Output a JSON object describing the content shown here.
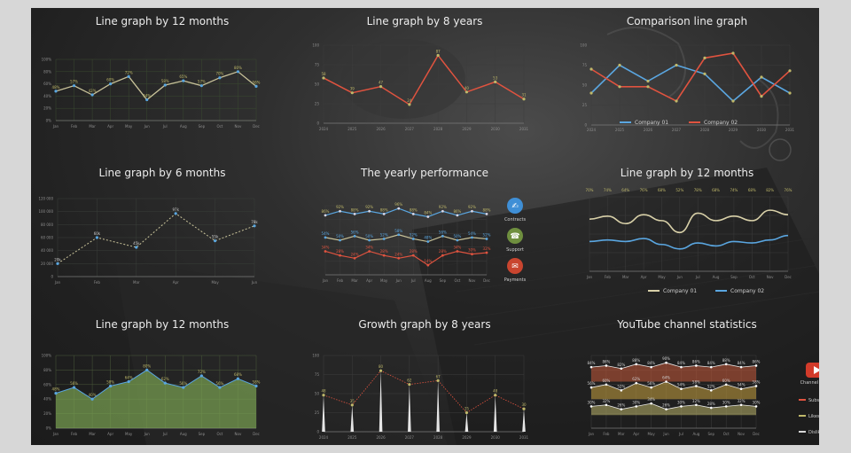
{
  "colors": {
    "yellow": "#bfb86a",
    "blue": "#5aa6e0",
    "red": "#e0533f",
    "green": "#7aa253",
    "cream": "#d8d0a8",
    "grid": "#3a4a30"
  },
  "chart_data": [
    {
      "type": "line",
      "title": "Line graph by 12 months",
      "categories": [
        "Jan",
        "Feb",
        "Mar",
        "Apr",
        "May",
        "Jun",
        "Jul",
        "Aug",
        "Sep",
        "Oct",
        "Nov",
        "Dec"
      ],
      "values": [
        48,
        57,
        42,
        60,
        72,
        34,
        58,
        65,
        57,
        70,
        80,
        56
      ],
      "ylim": [
        0,
        100
      ],
      "yticks": [
        "0%",
        "20%",
        "40%",
        "60%",
        "80%",
        "100%"
      ]
    },
    {
      "type": "line",
      "title": "Line graph by 8 years",
      "categories": [
        "2024",
        "2025",
        "2026",
        "2027",
        "2028",
        "2029",
        "2030",
        "2031"
      ],
      "values": [
        58,
        39,
        47,
        24,
        87,
        40,
        53,
        31
      ],
      "ylim": [
        0,
        100
      ],
      "yticks": [
        "0",
        "25",
        "50",
        "75",
        "100"
      ]
    },
    {
      "type": "line",
      "title": "Comparison line graph",
      "categories": [
        "2024",
        "2025",
        "2026",
        "2027",
        "2028",
        "2029",
        "2030",
        "2031"
      ],
      "series": [
        {
          "name": "Company 01",
          "values": [
            40,
            75,
            55,
            75,
            64,
            30,
            60,
            40
          ]
        },
        {
          "name": "Company 02",
          "values": [
            70,
            48,
            48,
            30,
            84,
            90,
            36,
            68
          ]
        }
      ],
      "ylim": [
        0,
        100
      ],
      "yticks": [
        "0",
        "25",
        "50",
        "75",
        "100"
      ],
      "legend": "bottom"
    },
    {
      "type": "line",
      "title": "Line graph by 6 months",
      "categories": [
        "Jan",
        "Feb",
        "Mar",
        "Apr",
        "May",
        "Jun"
      ],
      "values": [
        20000,
        60000,
        45000,
        97000,
        55000,
        78000
      ],
      "ylim": [
        0,
        120000
      ],
      "yticks": [
        "0",
        "20 000",
        "40 000",
        "60 000",
        "80 000",
        "100 000",
        "120 000"
      ],
      "labels": [
        "20k",
        "60k",
        "45k",
        "97k",
        "55k",
        "78k"
      ]
    },
    {
      "type": "line",
      "title": "The yearly performance",
      "categories": [
        "Jan",
        "Feb",
        "Mar",
        "Apr",
        "May",
        "Jun",
        "Jul",
        "Aug",
        "Sep",
        "Oct",
        "Nov",
        "Dec"
      ],
      "series": [
        {
          "name": "Contracts",
          "values": [
            86,
            92,
            88,
            92,
            88,
            96,
            88,
            84,
            92,
            86,
            92,
            88
          ]
        },
        {
          "name": "Support",
          "values": [
            54,
            50,
            56,
            50,
            52,
            58,
            52,
            48,
            56,
            50,
            54,
            52
          ]
        },
        {
          "name": "Payments",
          "values": [
            34,
            28,
            24,
            34,
            28,
            24,
            28,
            14,
            28,
            34,
            30,
            32
          ]
        }
      ],
      "ylim": [
        0,
        100
      ],
      "legend": "right"
    },
    {
      "type": "line",
      "title": "Line graph by 12 months",
      "categories": [
        "Jan",
        "Feb",
        "Mar",
        "Apr",
        "May",
        "Jun",
        "Jul",
        "Aug",
        "Sep",
        "Oct",
        "Nov",
        "Dec"
      ],
      "series": [
        {
          "name": "Company 01",
          "values": [
            70,
            74,
            64,
            76,
            68,
            52,
            78,
            68,
            74,
            68,
            82,
            76
          ]
        },
        {
          "name": "Company 02",
          "values": [
            40,
            42,
            40,
            44,
            36,
            30,
            38,
            34,
            40,
            38,
            42,
            48
          ]
        }
      ],
      "ylim": [
        0,
        100
      ],
      "toplabels": [
        "70%",
        "74%",
        "64%",
        "76%",
        "68%",
        "52%",
        "78%",
        "68%",
        "74%",
        "68%",
        "82%",
        "76%"
      ],
      "legend": "bottom"
    },
    {
      "type": "area",
      "title": "Line graph by 12 months",
      "categories": [
        "Jan",
        "Feb",
        "Mar",
        "Apr",
        "May",
        "Jun",
        "Jul",
        "Aug",
        "Sep",
        "Oct",
        "Nov",
        "Dec"
      ],
      "values": [
        48,
        56,
        40,
        58,
        64,
        80,
        62,
        56,
        72,
        56,
        68,
        58
      ],
      "ylim": [
        0,
        100
      ],
      "yticks": [
        "0%",
        "20%",
        "40%",
        "60%",
        "80%",
        "100%"
      ]
    },
    {
      "type": "bar",
      "title": "Growth graph by 8 years",
      "categories": [
        "2024",
        "2025",
        "2026",
        "2027",
        "2028",
        "2029",
        "2030",
        "2031"
      ],
      "values": [
        48,
        35,
        80,
        62,
        67,
        25,
        48,
        30
      ],
      "ylim": [
        0,
        100
      ],
      "yticks": [
        "0",
        "25",
        "50",
        "75",
        "100"
      ]
    },
    {
      "type": "area",
      "title": "YouTube channel statistics",
      "categories": [
        "Jan",
        "Feb",
        "Mar",
        "Apr",
        "May",
        "Jun",
        "Jul",
        "Aug",
        "Sep",
        "Oct",
        "Nov",
        "Dec"
      ],
      "series": [
        {
          "name": "Subscribers",
          "values": [
            84,
            86,
            82,
            88,
            84,
            90,
            84,
            86,
            84,
            88,
            84,
            86
          ]
        },
        {
          "name": "Likes",
          "values": [
            56,
            60,
            52,
            62,
            56,
            64,
            54,
            58,
            52,
            60,
            54,
            58
          ]
        },
        {
          "name": "Dislikes",
          "values": [
            30,
            32,
            26,
            30,
            34,
            26,
            30,
            32,
            28,
            30,
            32,
            30
          ]
        }
      ],
      "ylim": [
        0,
        100
      ],
      "legend": "right",
      "caption": "Channel Name"
    }
  ],
  "icons": {
    "contracts": "handshake-icon",
    "support": "headset-icon",
    "payments": "card-icon",
    "youtube": "youtube-icon"
  }
}
